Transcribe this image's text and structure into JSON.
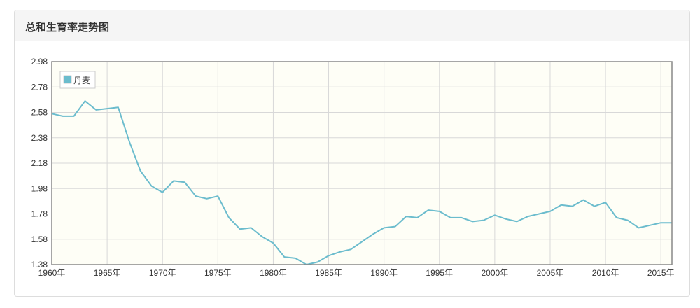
{
  "panel": {
    "title": "总和生育率走势图"
  },
  "colors": {
    "series": "#6bbccd",
    "grid": "#d8d8d8",
    "plot_bg": "#fefef6",
    "axis": "#888888"
  },
  "chart_data": {
    "type": "line",
    "title": "",
    "xlabel": "",
    "ylabel": "",
    "grid": true,
    "legend": "top-left",
    "xlim": [
      1960,
      2016
    ],
    "ylim": [
      1.38,
      2.98
    ],
    "yticks": [
      "2.98",
      "2.78",
      "2.58",
      "2.38",
      "2.18",
      "1.98",
      "1.78",
      "1.58",
      "1.38"
    ],
    "xticks": [
      "1960年",
      "1965年",
      "1970年",
      "1975年",
      "1980年",
      "1985年",
      "1990年",
      "1995年",
      "2000年",
      "2005年",
      "2010年",
      "2015年"
    ],
    "series": [
      {
        "name": "丹麦",
        "x": [
          1960,
          1961,
          1962,
          1963,
          1964,
          1965,
          1966,
          1967,
          1968,
          1969,
          1970,
          1971,
          1972,
          1973,
          1974,
          1975,
          1976,
          1977,
          1978,
          1979,
          1980,
          1981,
          1982,
          1983,
          1984,
          1985,
          1986,
          1987,
          1988,
          1989,
          1990,
          1991,
          1992,
          1993,
          1994,
          1995,
          1996,
          1997,
          1998,
          1999,
          2000,
          2001,
          2002,
          2003,
          2004,
          2005,
          2006,
          2007,
          2008,
          2009,
          2010,
          2011,
          2012,
          2013,
          2014,
          2015,
          2016
        ],
        "values": [
          2.57,
          2.55,
          2.55,
          2.67,
          2.6,
          2.61,
          2.62,
          2.35,
          2.12,
          2.0,
          1.95,
          2.04,
          2.03,
          1.92,
          1.9,
          1.92,
          1.75,
          1.66,
          1.67,
          1.6,
          1.55,
          1.44,
          1.43,
          1.38,
          1.4,
          1.45,
          1.48,
          1.5,
          1.56,
          1.62,
          1.67,
          1.68,
          1.76,
          1.75,
          1.81,
          1.8,
          1.75,
          1.75,
          1.72,
          1.73,
          1.77,
          1.74,
          1.72,
          1.76,
          1.78,
          1.8,
          1.85,
          1.84,
          1.89,
          1.84,
          1.87,
          1.75,
          1.73,
          1.67,
          1.69,
          1.71,
          1.71
        ]
      }
    ]
  }
}
